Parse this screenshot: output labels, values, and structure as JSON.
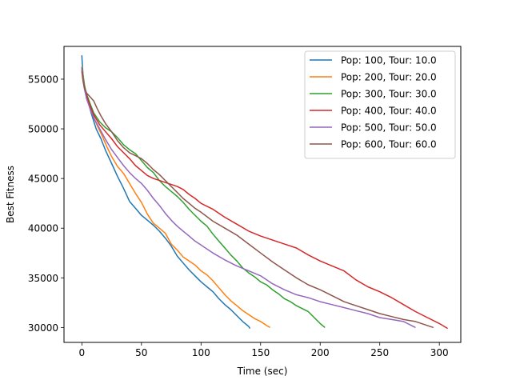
{
  "chart_data": {
    "type": "line",
    "title": "",
    "xlabel": "Time (sec)",
    "ylabel": "Best Fitness",
    "xlim": [
      -15,
      318
    ],
    "ylim": [
      28500,
      58300
    ],
    "xticks": [
      0,
      50,
      100,
      150,
      200,
      250,
      300
    ],
    "yticks": [
      30000,
      35000,
      40000,
      45000,
      50000,
      55000
    ],
    "legend_position": "top-right",
    "grid": false,
    "series": [
      {
        "name": "Pop: 100, Tour: 10.0",
        "color": "#1f77b4",
        "x": [
          0,
          0.5,
          1,
          2,
          3,
          5,
          8,
          12,
          16,
          20,
          25,
          30,
          35,
          40,
          45,
          50,
          55,
          60,
          65,
          70,
          75,
          80,
          85,
          90,
          95,
          100,
          105,
          110,
          115,
          120,
          125,
          130,
          135,
          140,
          141
        ],
        "y": [
          57400,
          56200,
          55500,
          54600,
          53800,
          52800,
          51500,
          50000,
          49000,
          47800,
          46500,
          45200,
          44000,
          42700,
          42000,
          41300,
          40800,
          40300,
          39700,
          39000,
          38200,
          37200,
          36500,
          35800,
          35200,
          34600,
          34100,
          33600,
          32900,
          32300,
          31800,
          31200,
          30600,
          30100,
          29900
        ]
      },
      {
        "name": "Pop: 200, Tour: 20.0",
        "color": "#ff7f0e",
        "x": [
          0,
          1,
          2,
          4,
          6,
          9,
          13,
          17,
          21,
          25,
          30,
          35,
          40,
          45,
          50,
          55,
          60,
          65,
          70,
          75,
          80,
          85,
          90,
          95,
          100,
          105,
          110,
          115,
          120,
          125,
          130,
          135,
          140,
          145,
          150,
          155,
          158
        ],
        "y": [
          56300,
          55400,
          54500,
          53400,
          52400,
          51400,
          50300,
          49300,
          48200,
          47200,
          46200,
          45500,
          44500,
          43500,
          42600,
          41400,
          40500,
          40000,
          39500,
          38400,
          37800,
          37100,
          36700,
          36300,
          35700,
          35300,
          34700,
          34000,
          33300,
          32700,
          32200,
          31700,
          31300,
          30900,
          30600,
          30200,
          30000
        ]
      },
      {
        "name": "Pop: 300, Tour: 30.0",
        "color": "#2ca02c",
        "x": [
          0,
          1,
          2,
          4,
          7,
          10,
          15,
          20,
          25,
          30,
          35,
          40,
          45,
          50,
          55,
          60,
          65,
          70,
          75,
          80,
          85,
          90,
          95,
          100,
          105,
          110,
          115,
          120,
          125,
          130,
          135,
          140,
          145,
          150,
          155,
          160,
          165,
          170,
          175,
          180,
          185,
          190,
          195,
          200,
          204
        ],
        "y": [
          56200,
          55200,
          54400,
          53500,
          52500,
          51600,
          50700,
          50100,
          49700,
          49100,
          48400,
          47900,
          47500,
          46800,
          46100,
          45600,
          44800,
          44200,
          43700,
          43200,
          42600,
          41900,
          41300,
          40700,
          40200,
          39400,
          38700,
          38000,
          37300,
          36700,
          36000,
          35500,
          35100,
          34600,
          34300,
          33800,
          33400,
          32900,
          32600,
          32200,
          31900,
          31600,
          31000,
          30400,
          30000
        ]
      },
      {
        "name": "Pop: 400, Tour: 40.0",
        "color": "#d62728",
        "x": [
          0,
          1,
          2,
          4,
          7,
          10,
          15,
          20,
          25,
          30,
          35,
          40,
          45,
          50,
          55,
          60,
          65,
          70,
          75,
          80,
          85,
          90,
          95,
          100,
          110,
          120,
          130,
          140,
          150,
          160,
          170,
          180,
          190,
          200,
          210,
          220,
          230,
          240,
          250,
          260,
          270,
          280,
          290,
          300,
          307
        ],
        "y": [
          56000,
          55000,
          54200,
          53300,
          52300,
          51400,
          50400,
          49700,
          49000,
          48200,
          47600,
          47000,
          46300,
          45800,
          45300,
          45000,
          44800,
          44600,
          44400,
          44200,
          43900,
          43400,
          43000,
          42500,
          41900,
          41100,
          40400,
          39700,
          39200,
          38800,
          38400,
          38000,
          37300,
          36700,
          36200,
          35700,
          34800,
          34100,
          33600,
          33000,
          32300,
          31600,
          31000,
          30400,
          29900
        ]
      },
      {
        "name": "Pop: 500, Tour: 50.0",
        "color": "#9467bd",
        "x": [
          0,
          1,
          2,
          4,
          7,
          10,
          15,
          20,
          25,
          30,
          35,
          40,
          45,
          50,
          55,
          60,
          65,
          70,
          75,
          80,
          85,
          90,
          95,
          100,
          110,
          120,
          130,
          140,
          150,
          160,
          170,
          180,
          190,
          200,
          210,
          220,
          230,
          240,
          250,
          260,
          270,
          280
        ],
        "y": [
          56100,
          55000,
          54100,
          53000,
          52000,
          51100,
          50000,
          48900,
          47900,
          47100,
          46300,
          45600,
          45000,
          44500,
          43800,
          43000,
          42300,
          41500,
          40800,
          40200,
          39700,
          39200,
          38700,
          38300,
          37500,
          36800,
          36200,
          35700,
          35200,
          34400,
          33800,
          33300,
          33000,
          32600,
          32300,
          32000,
          31700,
          31400,
          31000,
          30800,
          30600,
          30000
        ]
      },
      {
        "name": "Pop: 600, Tour: 60.0",
        "color": "#8c564b",
        "x": [
          0,
          1,
          2,
          4,
          7,
          10,
          13,
          16,
          20,
          25,
          30,
          35,
          40,
          45,
          50,
          55,
          60,
          65,
          70,
          75,
          80,
          85,
          90,
          95,
          100,
          110,
          120,
          130,
          140,
          150,
          160,
          170,
          180,
          190,
          200,
          210,
          220,
          230,
          240,
          250,
          260,
          270,
          280,
          290,
          295
        ],
        "y": [
          55800,
          54800,
          54200,
          53600,
          53200,
          52800,
          52000,
          51300,
          50500,
          49700,
          48800,
          48100,
          47600,
          47300,
          47000,
          46500,
          45900,
          45400,
          44800,
          44200,
          43600,
          43000,
          42500,
          42000,
          41600,
          40700,
          40000,
          39300,
          38400,
          37500,
          36600,
          35800,
          35000,
          34300,
          33800,
          33200,
          32600,
          32200,
          31800,
          31400,
          31100,
          30800,
          30600,
          30200,
          30000
        ]
      }
    ]
  }
}
